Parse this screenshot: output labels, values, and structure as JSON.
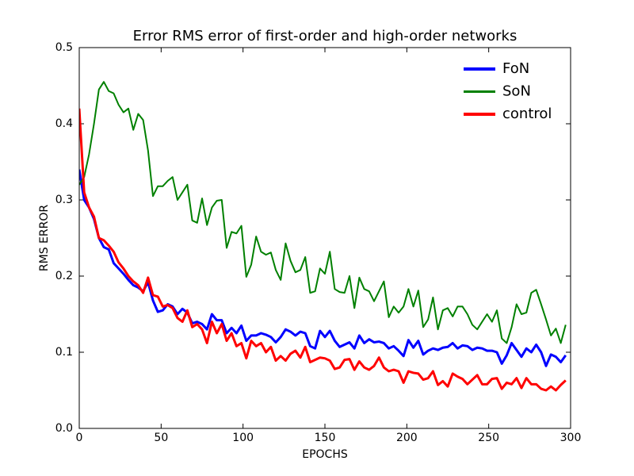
{
  "chart_data": {
    "type": "line",
    "title": "Error RMS error of first-order and high-order networks",
    "xlabel": "EPOCHS",
    "ylabel": "RMS ERROR",
    "x": [
      0,
      3,
      6,
      9,
      12,
      15,
      18,
      21,
      24,
      27,
      30,
      33,
      36,
      39,
      42,
      45,
      48,
      51,
      54,
      57,
      60,
      63,
      66,
      69,
      72,
      75,
      78,
      81,
      84,
      87,
      90,
      93,
      96,
      99,
      102,
      105,
      108,
      111,
      114,
      117,
      120,
      123,
      126,
      129,
      132,
      135,
      138,
      141,
      144,
      147,
      150,
      153,
      156,
      159,
      162,
      165,
      168,
      171,
      174,
      177,
      180,
      183,
      186,
      189,
      192,
      195,
      198,
      201,
      204,
      207,
      210,
      213,
      216,
      219,
      222,
      225,
      228,
      231,
      234,
      237,
      240,
      243,
      246,
      249,
      252,
      255,
      258,
      261,
      264,
      267,
      270,
      273,
      276,
      279,
      282,
      285,
      288,
      291,
      294,
      297
    ],
    "series": [
      {
        "name": "FoN",
        "color": "#0000ff",
        "width": 3,
        "values": [
          0.34,
          0.3,
          0.29,
          0.275,
          0.25,
          0.238,
          0.235,
          0.217,
          0.21,
          0.203,
          0.195,
          0.188,
          0.185,
          0.18,
          0.192,
          0.168,
          0.153,
          0.155,
          0.163,
          0.16,
          0.15,
          0.157,
          0.152,
          0.138,
          0.14,
          0.137,
          0.13,
          0.15,
          0.142,
          0.142,
          0.125,
          0.132,
          0.125,
          0.135,
          0.115,
          0.122,
          0.122,
          0.125,
          0.123,
          0.12,
          0.113,
          0.12,
          0.13,
          0.127,
          0.122,
          0.127,
          0.125,
          0.108,
          0.105,
          0.128,
          0.12,
          0.128,
          0.115,
          0.107,
          0.11,
          0.113,
          0.105,
          0.122,
          0.112,
          0.117,
          0.113,
          0.114,
          0.112,
          0.105,
          0.108,
          0.102,
          0.095,
          0.116,
          0.106,
          0.115,
          0.097,
          0.102,
          0.105,
          0.103,
          0.106,
          0.107,
          0.112,
          0.105,
          0.109,
          0.108,
          0.103,
          0.106,
          0.105,
          0.102,
          0.102,
          0.1,
          0.085,
          0.096,
          0.112,
          0.103,
          0.094,
          0.105,
          0.1,
          0.11,
          0.1,
          0.082,
          0.097,
          0.094,
          0.087,
          0.096
        ]
      },
      {
        "name": "SoN",
        "color": "#008000",
        "width": 2,
        "values": [
          0.32,
          0.33,
          0.36,
          0.4,
          0.445,
          0.455,
          0.443,
          0.44,
          0.425,
          0.415,
          0.42,
          0.392,
          0.413,
          0.405,
          0.365,
          0.305,
          0.318,
          0.318,
          0.325,
          0.33,
          0.3,
          0.31,
          0.32,
          0.273,
          0.27,
          0.302,
          0.267,
          0.29,
          0.299,
          0.3,
          0.237,
          0.258,
          0.256,
          0.266,
          0.199,
          0.215,
          0.252,
          0.232,
          0.228,
          0.231,
          0.208,
          0.195,
          0.243,
          0.22,
          0.205,
          0.208,
          0.225,
          0.178,
          0.18,
          0.21,
          0.203,
          0.232,
          0.183,
          0.179,
          0.178,
          0.2,
          0.158,
          0.198,
          0.183,
          0.18,
          0.167,
          0.18,
          0.193,
          0.146,
          0.16,
          0.152,
          0.16,
          0.183,
          0.16,
          0.181,
          0.133,
          0.143,
          0.172,
          0.13,
          0.155,
          0.158,
          0.147,
          0.16,
          0.16,
          0.15,
          0.136,
          0.13,
          0.14,
          0.15,
          0.14,
          0.155,
          0.118,
          0.112,
          0.133,
          0.163,
          0.15,
          0.152,
          0.178,
          0.182,
          0.163,
          0.143,
          0.122,
          0.131,
          0.112,
          0.136
        ]
      },
      {
        "name": "control",
        "color": "#ff0000",
        "width": 3,
        "values": [
          0.42,
          0.31,
          0.29,
          0.278,
          0.25,
          0.247,
          0.24,
          0.232,
          0.218,
          0.21,
          0.2,
          0.193,
          0.188,
          0.178,
          0.198,
          0.175,
          0.173,
          0.16,
          0.162,
          0.158,
          0.145,
          0.14,
          0.155,
          0.133,
          0.137,
          0.13,
          0.112,
          0.14,
          0.125,
          0.137,
          0.115,
          0.125,
          0.108,
          0.112,
          0.092,
          0.115,
          0.108,
          0.112,
          0.1,
          0.107,
          0.089,
          0.095,
          0.089,
          0.098,
          0.102,
          0.093,
          0.107,
          0.087,
          0.09,
          0.093,
          0.092,
          0.089,
          0.078,
          0.08,
          0.09,
          0.091,
          0.077,
          0.088,
          0.08,
          0.077,
          0.082,
          0.093,
          0.08,
          0.075,
          0.077,
          0.075,
          0.06,
          0.075,
          0.073,
          0.072,
          0.064,
          0.066,
          0.075,
          0.057,
          0.062,
          0.055,
          0.072,
          0.068,
          0.065,
          0.058,
          0.064,
          0.07,
          0.058,
          0.058,
          0.065,
          0.066,
          0.052,
          0.06,
          0.058,
          0.066,
          0.053,
          0.066,
          0.058,
          0.058,
          0.052,
          0.05,
          0.055,
          0.05,
          0.057,
          0.063
        ]
      }
    ],
    "xlim": [
      0,
      300
    ],
    "xticks": [
      0,
      50,
      100,
      150,
      200,
      250,
      300
    ],
    "ylim": [
      0,
      0.5
    ],
    "yticks": [
      {
        "value": 0,
        "label": "0.0"
      },
      0.1,
      0.2,
      0.3,
      0.4,
      0.5
    ],
    "legend": "upper right",
    "grid": false
  }
}
